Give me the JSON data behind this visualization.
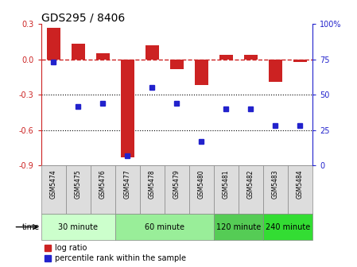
{
  "title": "GDS295 / 8406",
  "samples": [
    "GSM5474",
    "GSM5475",
    "GSM5476",
    "GSM5477",
    "GSM5478",
    "GSM5479",
    "GSM5480",
    "GSM5481",
    "GSM5482",
    "GSM5483",
    "GSM5484"
  ],
  "log_ratio": [
    0.27,
    0.13,
    0.05,
    -0.83,
    0.12,
    -0.08,
    -0.22,
    0.04,
    0.04,
    -0.19,
    -0.02
  ],
  "percentile_rank": [
    73,
    42,
    44,
    7,
    55,
    44,
    17,
    40,
    40,
    28,
    28
  ],
  "bar_color": "#cc2222",
  "dot_color": "#2222cc",
  "ylim_left": [
    -0.9,
    0.3
  ],
  "ylim_right": [
    0,
    100
  ],
  "yticks_left": [
    0.3,
    0.0,
    -0.3,
    -0.6,
    -0.9
  ],
  "yticks_right": [
    100,
    75,
    50,
    25,
    0
  ],
  "hline_color": "#cc2222",
  "dotted_lines": [
    -0.3,
    -0.6
  ],
  "groups": [
    {
      "label": "30 minute",
      "start": 0,
      "end": 3,
      "color": "#ccffcc"
    },
    {
      "label": "60 minute",
      "start": 3,
      "end": 7,
      "color": "#99ee99"
    },
    {
      "label": "120 minute",
      "start": 7,
      "end": 9,
      "color": "#55cc55"
    },
    {
      "label": "240 minute",
      "start": 9,
      "end": 11,
      "color": "#33dd33"
    }
  ],
  "time_label": "time",
  "legend_bar_label": "log ratio",
  "legend_dot_label": "percentile rank within the sample",
  "background_color": "#ffffff",
  "sample_box_color": "#dddddd",
  "sample_box_edge": "#888888",
  "bar_width": 0.55
}
